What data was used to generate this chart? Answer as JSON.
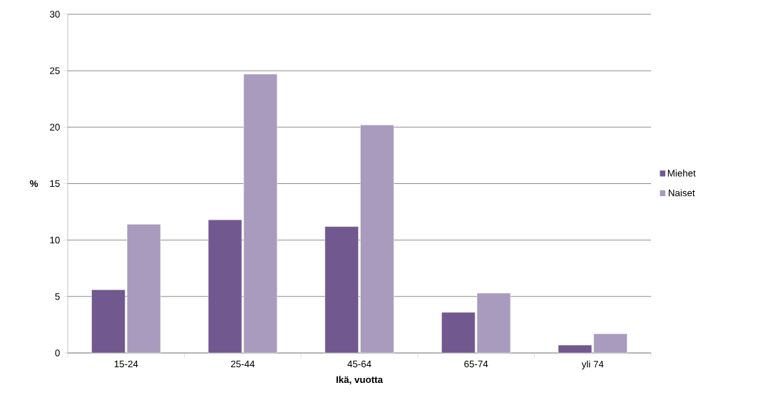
{
  "chart_data": {
    "type": "bar",
    "xlabel": "Ikä, vuotta",
    "ylabel": "%",
    "categories": [
      "15-24",
      "25-44",
      "45-64",
      "65-74",
      "yli 74"
    ],
    "series": [
      {
        "name": "Miehet",
        "color": "#71588f",
        "values": [
          5.6,
          11.8,
          11.2,
          3.6,
          0.7
        ]
      },
      {
        "name": "Naiset",
        "color": "#a99bbd",
        "values": [
          11.4,
          24.7,
          20.2,
          5.3,
          1.7
        ]
      }
    ],
    "ylim": [
      0,
      30
    ],
    "yticks": [
      0,
      5,
      10,
      15,
      20,
      25,
      30
    ],
    "grid": "y",
    "legend": "right"
  }
}
